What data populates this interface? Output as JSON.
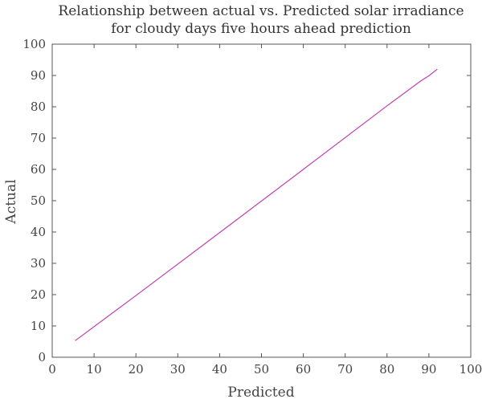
{
  "chart_data": {
    "type": "line",
    "title_lines": [
      "Relationship between actual vs. Predicted solar irradiance",
      "for cloudy days five hours ahead prediction"
    ],
    "xlabel": "Predicted",
    "ylabel": "Actual",
    "xlim": [
      0,
      100
    ],
    "ylim": [
      0,
      100
    ],
    "xticks": [
      0,
      10,
      20,
      30,
      40,
      50,
      60,
      70,
      80,
      90,
      100
    ],
    "yticks": [
      0,
      10,
      20,
      30,
      40,
      50,
      60,
      70,
      80,
      90,
      100
    ],
    "grid": false,
    "series": [
      {
        "color": "#c03fb0",
        "points": [
          [
            5.5,
            5.3
          ],
          [
            20,
            19.7
          ],
          [
            40,
            39.8
          ],
          [
            60,
            60
          ],
          [
            80,
            80.3
          ],
          [
            88,
            88.2
          ],
          [
            90,
            89.9
          ],
          [
            92,
            92
          ]
        ]
      }
    ]
  }
}
